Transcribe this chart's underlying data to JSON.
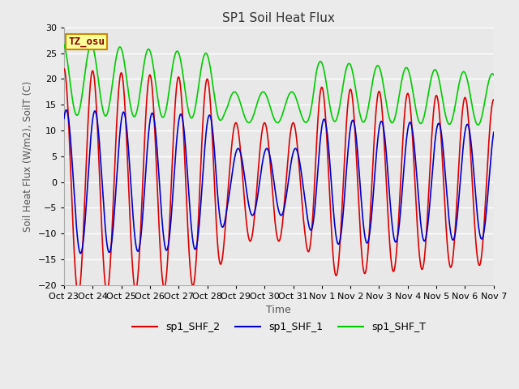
{
  "title": "SP1 Soil Heat Flux",
  "xlabel": "Time",
  "ylabel": "Soil Heat Flux (W/m2), SoilT (C)",
  "ylim": [
    -20,
    30
  ],
  "background_color": "#ebebeb",
  "plot_bg_color": "#e8e8e8",
  "grid_color": "#ffffff",
  "annotation_text": "TZ_osu",
  "annotation_bg": "#ffff99",
  "annotation_border": "#cc8800",
  "annotation_text_color": "#880000",
  "tick_labels": [
    "Oct 23",
    "Oct 24",
    "Oct 25",
    "Oct 26",
    "Oct 27",
    "Oct 28",
    "Oct 29",
    "Oct 30",
    "Oct 31",
    "Nov 1",
    "Nov 2",
    "Nov 3",
    "Nov 4",
    "Nov 5",
    "Nov 6",
    "Nov 7"
  ],
  "legend_labels": [
    "sp1_SHF_2",
    "sp1_SHF_1",
    "sp1_SHF_T"
  ],
  "line_colors": [
    "#dd0000",
    "#0000cc",
    "#00cc00"
  ],
  "line_width": 1.2,
  "n_days": 15,
  "pts_per_day": 144
}
